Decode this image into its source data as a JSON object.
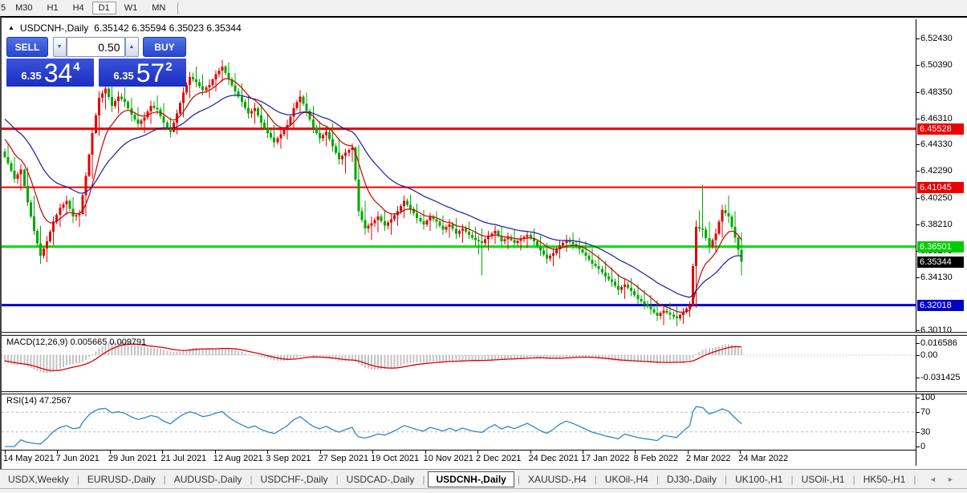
{
  "toolbar": {
    "partial_timeframe": "5",
    "timeframes": [
      "M30",
      "H1",
      "H4",
      "D1",
      "W1",
      "MN"
    ],
    "active": "D1"
  },
  "chart_header": {
    "collapse_icon": "▲",
    "symbol": "USDCNH-,Daily",
    "ohlc_text": "6.35142 6.35594 6.35023 6.35344"
  },
  "trade_panel": {
    "sell_label": "SELL",
    "buy_label": "BUY",
    "lot_value": "0.50",
    "spinner_down": "▼",
    "spinner_up": "▲",
    "sell_price_small": "6.35",
    "sell_price_big": "34",
    "sell_price_sup": "4",
    "buy_price_small": "6.35",
    "buy_price_big": "57",
    "buy_price_sup": "2"
  },
  "tabs": {
    "items": [
      "USDX,Weekly",
      "EURUSD-,Daily",
      "AUDUSD-,Daily",
      "USDCHF-,Daily",
      "USDCAD-,Daily",
      "USDCNH-,Daily",
      "XAUUSD-,H4",
      "UKOil-,H4",
      "DJ30-,Daily",
      "UK100-,H1",
      "USOil-,H1",
      "HK50-,H1"
    ],
    "active": "USDCNH-,Daily",
    "scroll_left": "◄",
    "scroll_right": "►"
  },
  "chart_data": {
    "type": "candlestick",
    "symbol": "USDCNH-,Daily",
    "y_axis_labels": [
      {
        "text": "6.52430",
        "value": 6.5243
      },
      {
        "text": "6.50390",
        "value": 6.5039
      },
      {
        "text": "6.48350",
        "value": 6.4835
      },
      {
        "text": "6.46310",
        "value": 6.4631
      },
      {
        "text": "6.44330",
        "value": 6.4433
      },
      {
        "text": "6.42290",
        "value": 6.4229
      },
      {
        "text": "6.40250",
        "value": 6.4025
      },
      {
        "text": "6.38210",
        "value": 6.3821
      },
      {
        "text": "6.36170",
        "value": 6.3617
      },
      {
        "text": "6.34130",
        "value": 6.3413
      },
      {
        "text": "6.30110",
        "value": 6.3011
      }
    ],
    "levels": [
      {
        "text": "6.45528",
        "value": 6.45528,
        "color": "#ee0000",
        "thickness": 3
      },
      {
        "text": "6.41045",
        "value": 6.41045,
        "color": "#ee0000",
        "thickness": 2
      },
      {
        "text": "6.36501",
        "value": 6.36501,
        "color": "#00dd00",
        "thickness": 3
      },
      {
        "text": "6.32018",
        "value": 6.32018,
        "color": "#0000cc",
        "thickness": 3
      }
    ],
    "current_price": {
      "text": "6.35344",
      "value": 6.35344
    },
    "x_axis_dates": [
      "14 May 2021",
      "7 Jun 2021",
      "29 Jun 2021",
      "21 Jul 2021",
      "12 Aug 2021",
      "3 Sep 2021",
      "27 Sep 2021",
      "19 Oct 2021",
      "10 Nov 2021",
      "2 Dec 2021",
      "24 Dec 2021",
      "17 Jan 2022",
      "8 Feb 2022",
      "2 Mar 2022",
      "24 Mar 2022"
    ],
    "ma_prehistory_closes": [
      6.482,
      6.479,
      6.476,
      6.473,
      6.47,
      6.467,
      6.464,
      6.461,
      6.458,
      6.455,
      6.452,
      6.449,
      6.446,
      6.443,
      6.441,
      6.439
    ],
    "candles_2day_ohlc": [
      [
        6.438,
        6.444,
        6.427,
        6.429
      ],
      [
        6.429,
        6.434,
        6.414,
        6.417
      ],
      [
        6.417,
        6.428,
        6.408,
        6.424
      ],
      [
        6.424,
        6.426,
        6.396,
        6.399
      ],
      [
        6.399,
        6.404,
        6.374,
        6.377
      ],
      [
        6.377,
        6.381,
        6.352,
        6.358
      ],
      [
        6.358,
        6.373,
        6.353,
        6.369
      ],
      [
        6.369,
        6.388,
        6.366,
        6.384
      ],
      [
        6.384,
        6.398,
        6.38,
        6.395
      ],
      [
        6.395,
        6.404,
        6.389,
        6.4
      ],
      [
        6.4,
        6.403,
        6.383,
        6.388
      ],
      [
        6.388,
        6.393,
        6.38,
        6.39
      ],
      [
        6.39,
        6.422,
        6.388,
        6.419
      ],
      [
        6.419,
        6.455,
        6.417,
        6.452
      ],
      [
        6.452,
        6.484,
        6.45,
        6.479
      ],
      [
        6.479,
        6.492,
        6.47,
        6.486
      ],
      [
        6.486,
        6.489,
        6.468,
        6.473
      ],
      [
        6.473,
        6.484,
        6.467,
        6.48
      ],
      [
        6.48,
        6.487,
        6.472,
        6.476
      ],
      [
        6.476,
        6.479,
        6.461,
        6.466
      ],
      [
        6.466,
        6.472,
        6.455,
        6.459
      ],
      [
        6.459,
        6.468,
        6.452,
        6.464
      ],
      [
        6.464,
        6.477,
        6.459,
        6.473
      ],
      [
        6.473,
        6.481,
        6.466,
        6.47
      ],
      [
        6.47,
        6.475,
        6.455,
        6.46
      ],
      [
        6.46,
        6.464,
        6.449,
        6.453
      ],
      [
        6.453,
        6.47,
        6.451,
        6.467
      ],
      [
        6.467,
        6.487,
        6.464,
        6.483
      ],
      [
        6.483,
        6.499,
        6.479,
        6.495
      ],
      [
        6.495,
        6.503,
        6.487,
        6.491
      ],
      [
        6.491,
        6.497,
        6.481,
        6.485
      ],
      [
        6.485,
        6.493,
        6.479,
        6.489
      ],
      [
        6.489,
        6.5,
        6.484,
        6.497
      ],
      [
        6.497,
        6.508,
        6.491,
        6.503
      ],
      [
        6.503,
        6.506,
        6.489,
        6.493
      ],
      [
        6.493,
        6.498,
        6.48,
        6.484
      ],
      [
        6.484,
        6.49,
        6.472,
        6.476
      ],
      [
        6.476,
        6.481,
        6.463,
        6.467
      ],
      [
        6.467,
        6.475,
        6.459,
        6.471
      ],
      [
        6.471,
        6.474,
        6.456,
        6.46
      ],
      [
        6.46,
        6.466,
        6.448,
        6.452
      ],
      [
        6.452,
        6.458,
        6.441,
        6.445
      ],
      [
        6.445,
        6.455,
        6.44,
        6.451
      ],
      [
        6.451,
        6.462,
        6.447,
        6.458
      ],
      [
        6.458,
        6.475,
        6.455,
        6.471
      ],
      [
        6.471,
        6.485,
        6.467,
        6.48
      ],
      [
        6.48,
        6.483,
        6.465,
        6.469
      ],
      [
        6.469,
        6.473,
        6.452,
        6.456
      ],
      [
        6.456,
        6.461,
        6.444,
        6.448
      ],
      [
        6.448,
        6.457,
        6.442,
        6.453
      ],
      [
        6.453,
        6.459,
        6.438,
        6.442
      ],
      [
        6.442,
        6.448,
        6.428,
        6.432
      ],
      [
        6.432,
        6.44,
        6.421,
        6.437
      ],
      [
        6.437,
        6.444,
        6.43,
        6.441
      ],
      [
        6.441,
        6.443,
        6.388,
        6.392
      ],
      [
        6.392,
        6.4,
        6.374,
        6.379
      ],
      [
        6.379,
        6.388,
        6.37,
        6.383
      ],
      [
        6.383,
        6.392,
        6.376,
        6.388
      ],
      [
        6.388,
        6.393,
        6.377,
        6.381
      ],
      [
        6.381,
        6.39,
        6.374,
        6.386
      ],
      [
        6.386,
        6.396,
        6.381,
        6.392
      ],
      [
        6.392,
        6.404,
        6.387,
        6.4
      ],
      [
        6.4,
        6.405,
        6.39,
        6.394
      ],
      [
        6.394,
        6.398,
        6.383,
        6.387
      ],
      [
        6.387,
        6.393,
        6.378,
        6.382
      ],
      [
        6.382,
        6.391,
        6.377,
        6.388
      ],
      [
        6.388,
        6.392,
        6.379,
        6.384
      ],
      [
        6.384,
        6.389,
        6.374,
        6.378
      ],
      [
        6.378,
        6.386,
        6.372,
        6.382
      ],
      [
        6.382,
        6.387,
        6.371,
        6.375
      ],
      [
        6.375,
        6.382,
        6.368,
        6.379
      ],
      [
        6.379,
        6.384,
        6.371,
        6.374
      ],
      [
        6.374,
        6.38,
        6.366,
        6.37
      ],
      [
        6.37,
        6.379,
        6.343,
        6.368
      ],
      [
        6.368,
        6.377,
        6.362,
        6.373
      ],
      [
        6.373,
        6.381,
        6.367,
        6.377
      ],
      [
        6.377,
        6.38,
        6.366,
        6.369
      ],
      [
        6.369,
        6.376,
        6.363,
        6.372
      ],
      [
        6.372,
        6.378,
        6.365,
        6.368
      ],
      [
        6.368,
        6.374,
        6.362,
        6.371
      ],
      [
        6.371,
        6.377,
        6.364,
        6.374
      ],
      [
        6.374,
        6.379,
        6.366,
        6.369
      ],
      [
        6.369,
        6.373,
        6.358,
        6.362
      ],
      [
        6.362,
        6.368,
        6.352,
        6.356
      ],
      [
        6.356,
        6.364,
        6.35,
        6.36
      ],
      [
        6.36,
        6.37,
        6.356,
        6.366
      ],
      [
        6.366,
        6.374,
        6.361,
        6.37
      ],
      [
        6.37,
        6.376,
        6.363,
        6.367
      ],
      [
        6.367,
        6.372,
        6.359,
        6.363
      ],
      [
        6.363,
        6.369,
        6.354,
        6.358
      ],
      [
        6.358,
        6.364,
        6.348,
        6.352
      ],
      [
        6.352,
        6.359,
        6.344,
        6.348
      ],
      [
        6.348,
        6.354,
        6.338,
        6.342
      ],
      [
        6.342,
        6.349,
        6.334,
        6.338
      ],
      [
        6.338,
        6.344,
        6.328,
        6.332
      ],
      [
        6.332,
        6.34,
        6.325,
        6.336
      ],
      [
        6.336,
        6.341,
        6.327,
        6.331
      ],
      [
        6.331,
        6.336,
        6.321,
        6.325
      ],
      [
        6.325,
        6.332,
        6.317,
        6.321
      ],
      [
        6.321,
        6.328,
        6.313,
        6.317
      ],
      [
        6.317,
        6.324,
        6.308,
        6.312
      ],
      [
        6.312,
        6.32,
        6.305,
        6.316
      ],
      [
        6.316,
        6.322,
        6.309,
        6.313
      ],
      [
        6.313,
        6.319,
        6.304,
        6.31
      ],
      [
        6.31,
        6.318,
        6.306,
        6.315
      ],
      [
        6.315,
        6.323,
        6.311,
        6.32
      ],
      [
        6.32,
        6.385,
        6.318,
        6.38
      ],
      [
        6.38,
        6.412,
        6.372,
        6.378
      ],
      [
        6.378,
        6.384,
        6.36,
        6.365
      ],
      [
        6.365,
        6.379,
        6.361,
        6.375
      ],
      [
        6.375,
        6.397,
        6.372,
        6.393
      ],
      [
        6.393,
        6.404,
        6.383,
        6.388
      ],
      [
        6.388,
        6.392,
        6.368,
        6.372
      ],
      [
        6.372,
        6.376,
        6.343,
        6.3534
      ]
    ],
    "indicators": {
      "macd": {
        "label": "MACD(12,26,9) 0.005665 0.009791",
        "params": [
          12,
          26,
          9
        ],
        "main_value": 0.005665,
        "signal_value": 0.009791,
        "axis_labels": [
          {
            "text": "0.016586",
            "value": 0.016586
          },
          {
            "text": "0.00",
            "value": 0
          },
          {
            "text": "-0.031425",
            "value": -0.031425
          }
        ]
      },
      "rsi": {
        "label": "RSI(14) 47.2567",
        "period": 14,
        "value": 47.2567,
        "axis_labels": [
          {
            "text": "100",
            "value": 100
          },
          {
            "text": "70",
            "value": 70
          },
          {
            "text": "30",
            "value": 30
          },
          {
            "text": "0",
            "value": 0
          }
        ],
        "level_lines": [
          70,
          30
        ]
      }
    },
    "colors": {
      "up": "#e60000",
      "down": "#00a800",
      "ma_fast": "#cc0000",
      "ma_slow": "#1a1aa0",
      "macd_hist": "#c4c4c4",
      "macd_signal": "#dd0000",
      "rsi_line": "#2e86d0",
      "level_dashed": "#bbbbbb"
    }
  }
}
